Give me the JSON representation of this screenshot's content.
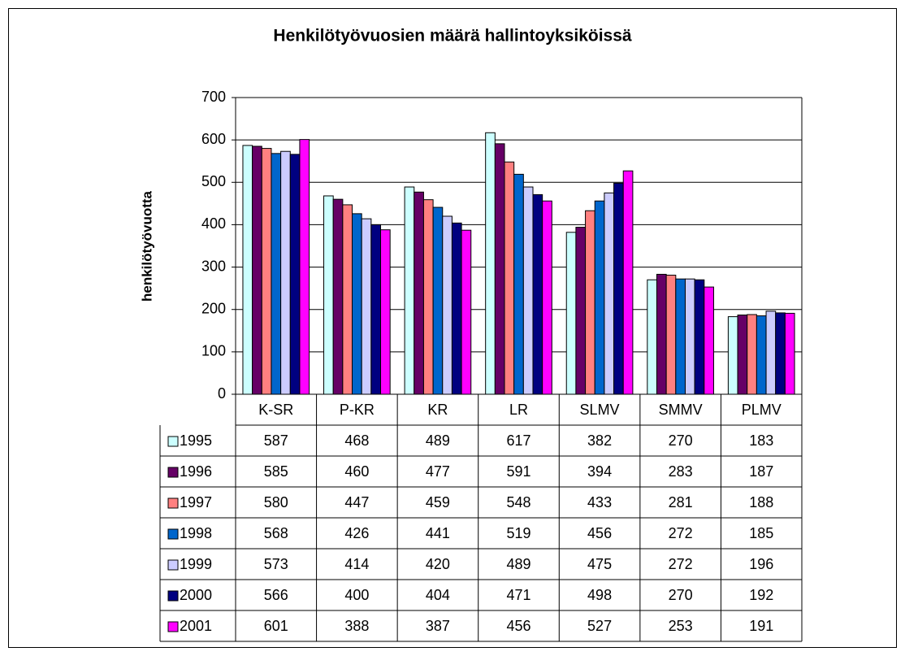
{
  "chart_data": {
    "type": "bar",
    "title": "Henkilötyövuosien määrä hallintoyksiköissä",
    "y_label": "henkilötyövuotta",
    "categories": [
      "K-SR",
      "P-KR",
      "KR",
      "LR",
      "SLMV",
      "SMMV",
      "PLMV"
    ],
    "series": [
      {
        "name": "1995",
        "color": "#ccffff",
        "values": [
          587,
          468,
          489,
          617,
          382,
          270,
          183
        ]
      },
      {
        "name": "1996",
        "color": "#660066",
        "values": [
          585,
          460,
          477,
          591,
          394,
          283,
          187
        ]
      },
      {
        "name": "1997",
        "color": "#ff8080",
        "values": [
          580,
          447,
          459,
          548,
          433,
          281,
          188
        ]
      },
      {
        "name": "1998",
        "color": "#0066cc",
        "values": [
          568,
          426,
          441,
          519,
          456,
          272,
          185
        ]
      },
      {
        "name": "1999",
        "color": "#ccccff",
        "values": [
          573,
          414,
          420,
          489,
          475,
          272,
          196
        ]
      },
      {
        "name": "2000",
        "color": "#000080",
        "values": [
          566,
          400,
          404,
          471,
          498,
          270,
          192
        ]
      },
      {
        "name": "2001",
        "color": "#ff00ff",
        "values": [
          601,
          388,
          387,
          456,
          527,
          253,
          191
        ]
      }
    ],
    "ylim": [
      0,
      700
    ],
    "yticks": [
      0,
      100,
      200,
      300,
      400,
      500,
      600,
      700
    ],
    "grid": true
  }
}
